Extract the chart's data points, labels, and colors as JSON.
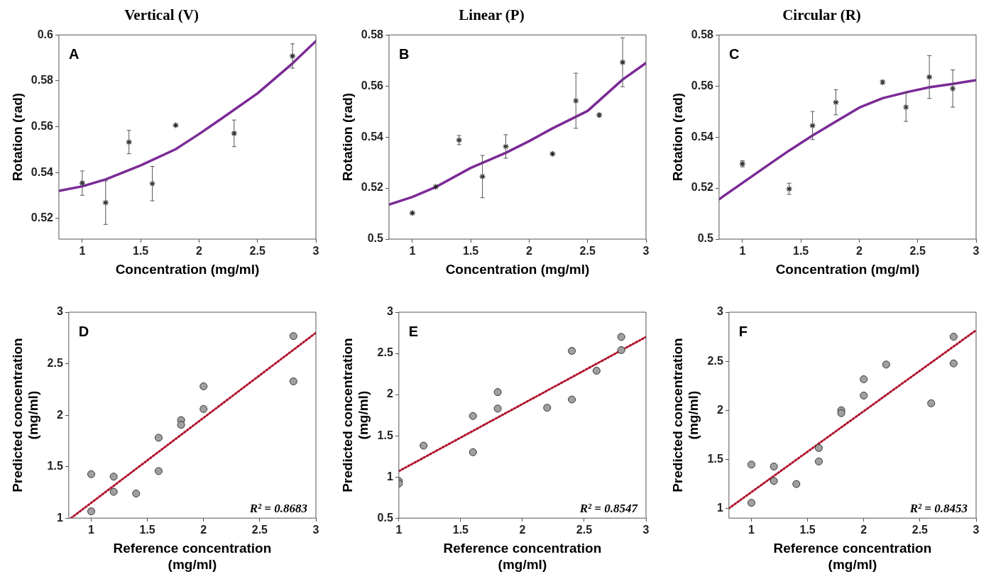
{
  "chart_data": [
    {
      "type": "scatter",
      "title": "Vertical (V)",
      "xlabel": "Concentration (mg/ml)",
      "ylabel": "Rotation (rad)",
      "xlim": [
        0.8,
        3
      ],
      "ylim": [
        0.511,
        0.6
      ],
      "xticks": [
        1,
        1.5,
        2,
        2.5,
        3
      ],
      "yticks": [
        0.52,
        0.54,
        0.56,
        0.58,
        0.6
      ],
      "grid": false,
      "legend": false,
      "annotations": [
        "A"
      ],
      "series": [
        {
          "type": "scatter",
          "color": "#222222",
          "marker": "cross",
          "x": [
            1,
            1.2,
            1.4,
            1.6,
            1.8,
            2.3,
            2.8
          ],
          "values": [
            0.5354,
            0.5269,
            0.5533,
            0.5352,
            0.5606,
            0.5571,
            0.5908
          ],
          "errors": [
            0.0053,
            0.0095,
            0.0051,
            0.0075,
            null,
            0.0058,
            0.0053
          ]
        },
        {
          "type": "line",
          "color": "#7b2a96",
          "line_style": "solid",
          "marker": "none",
          "x": [
            0.8,
            1,
            1.2,
            1.5,
            1.8,
            2,
            2.2,
            2.5,
            2.8,
            3
          ],
          "values": [
            0.532,
            0.534,
            0.537,
            0.5431,
            0.5502,
            0.5568,
            0.5638,
            0.5745,
            0.5876,
            0.5973
          ]
        }
      ]
    },
    {
      "type": "scatter",
      "title": "Linear (P)",
      "xlabel": "Concentration (mg/ml)",
      "ylabel": "Rotation (rad)",
      "xlim": [
        0.8,
        3
      ],
      "ylim": [
        0.5,
        0.58
      ],
      "xticks": [
        1,
        1.5,
        2,
        2.5,
        3
      ],
      "yticks": [
        0.5,
        0.52,
        0.54,
        0.56,
        0.58
      ],
      "grid": false,
      "legend": false,
      "annotations": [
        "B"
      ],
      "series": [
        {
          "type": "scatter",
          "color": "#222222",
          "marker": "cross",
          "x": [
            1,
            1.2,
            1.4,
            1.6,
            1.8,
            2.2,
            2.4,
            2.6,
            2.8
          ],
          "values": [
            0.5102,
            0.5205,
            0.5388,
            0.5245,
            0.5363,
            0.5334,
            0.5542,
            0.5486,
            0.5693
          ],
          "errors": [
            null,
            null,
            0.0018,
            0.0083,
            0.0046,
            null,
            0.0108,
            0.0007,
            0.0096
          ]
        },
        {
          "type": "line",
          "color": "#7b2a96",
          "line_style": "solid",
          "marker": "none",
          "x": [
            0.8,
            1,
            1.2,
            1.5,
            1.8,
            2,
            2.2,
            2.5,
            2.8,
            3
          ],
          "values": [
            0.5135,
            0.5165,
            0.5204,
            0.5279,
            0.5338,
            0.5384,
            0.5434,
            0.5502,
            0.5625,
            0.569
          ]
        }
      ]
    },
    {
      "type": "scatter",
      "title": "Circular (R)",
      "xlabel": "Concentration (mg/ml)",
      "ylabel": "Rotation (rad)",
      "xlim": [
        0.8,
        3
      ],
      "ylim": [
        0.5,
        0.58
      ],
      "xticks": [
        1,
        1.5,
        2,
        2.5,
        3
      ],
      "yticks": [
        0.5,
        0.52,
        0.54,
        0.56,
        0.58
      ],
      "grid": false,
      "legend": false,
      "annotations": [
        "C"
      ],
      "series": [
        {
          "type": "scatter",
          "color": "#222222",
          "marker": "cross",
          "x": [
            1,
            1.4,
            1.6,
            1.8,
            2.2,
            2.4,
            2.6,
            2.8
          ],
          "values": [
            0.5295,
            0.5197,
            0.5445,
            0.5536,
            0.5615,
            0.5517,
            0.5635,
            0.559
          ],
          "errors": [
            0.0012,
            0.0022,
            0.0055,
            0.0049,
            0.0007,
            0.0056,
            0.0084,
            0.0073
          ]
        },
        {
          "type": "line",
          "color": "#7b2a96",
          "line_style": "solid",
          "marker": "none",
          "x": [
            0.8,
            1,
            1.2,
            1.4,
            1.6,
            1.8,
            2,
            2.2,
            2.4,
            2.6,
            2.8,
            3
          ],
          "values": [
            0.5156,
            0.522,
            0.5284,
            0.5347,
            0.5406,
            0.5461,
            0.5515,
            0.5552,
            0.5575,
            0.5595,
            0.5608,
            0.5623
          ]
        }
      ]
    },
    {
      "type": "scatter",
      "xlabel": "Reference concentration (mg/ml)",
      "ylabel": "Predicted concentration (mg/ml)",
      "xlim": [
        0.8,
        3
      ],
      "ylim": [
        1,
        3
      ],
      "xticks": [
        1,
        1.5,
        2,
        2.5,
        3
      ],
      "yticks": [
        1,
        1.5,
        2,
        2.5,
        3
      ],
      "grid": false,
      "legend": false,
      "annotations": [
        "D",
        "R² = 0.8683"
      ],
      "series": [
        {
          "type": "scatter",
          "color": "#a0a0a0",
          "marker": "circle",
          "x": [
            1,
            1,
            1.2,
            1.2,
            1.4,
            1.6,
            1.6,
            1.8,
            1.8,
            2,
            2,
            2.8,
            2.8
          ],
          "values": [
            1.427,
            1.066,
            1.403,
            1.256,
            1.239,
            1.781,
            1.457,
            1.952,
            1.906,
            2.28,
            2.06,
            2.768,
            2.328
          ]
        },
        {
          "type": "line",
          "color": "#b0122c",
          "line_style": "dotted",
          "marker": "none",
          "x": [
            0.82,
            3
          ],
          "values": [
            1,
            2.8
          ]
        }
      ]
    },
    {
      "type": "scatter",
      "xlabel": "Reference concentration (mg/ml)",
      "ylabel": "Predicted concentration (mg/ml)",
      "xlim": [
        1,
        3
      ],
      "ylim": [
        0.5,
        3
      ],
      "xticks": [
        1,
        1.5,
        2,
        2.5,
        3
      ],
      "yticks": [
        0.5,
        1,
        1.5,
        2,
        2.5,
        3
      ],
      "grid": false,
      "legend": false,
      "annotations": [
        "E",
        "R² = 0.8547"
      ],
      "series": [
        {
          "type": "scatter",
          "color": "#a0a0a0",
          "marker": "circle",
          "x": [
            1,
            1,
            1.2,
            1.6,
            1.6,
            1.8,
            1.8,
            2.2,
            2.4,
            2.4,
            2.6,
            2.8,
            2.8
          ],
          "values": [
            0.95,
            0.92,
            1.38,
            1.74,
            1.3,
            2.03,
            1.83,
            1.84,
            2.53,
            1.94,
            2.29,
            2.7,
            2.54
          ]
        },
        {
          "type": "line",
          "color": "#b0122c",
          "line_style": "dotted",
          "marker": "none",
          "x": [
            1,
            3
          ],
          "values": [
            1.07,
            2.7
          ]
        }
      ]
    },
    {
      "type": "scatter",
      "xlabel": "Reference concentration (mg/ml)",
      "ylabel": "Predicted concentration (mg/ml)",
      "xlim": [
        0.8,
        3
      ],
      "ylim": [
        0.9,
        3
      ],
      "xticks": [
        1,
        1.5,
        2,
        2.5,
        3
      ],
      "yticks": [
        1,
        1.5,
        2,
        2.5,
        3
      ],
      "grid": false,
      "legend": false,
      "annotations": [
        "F",
        "R² = 0.8453"
      ],
      "series": [
        {
          "type": "scatter",
          "color": "#a0a0a0",
          "marker": "circle",
          "x": [
            1,
            1,
            1.2,
            1.2,
            1.4,
            1.6,
            1.6,
            1.8,
            1.8,
            2,
            2,
            2.2,
            2.6,
            2.8,
            2.8
          ],
          "values": [
            1.446,
            1.056,
            1.426,
            1.279,
            1.248,
            1.615,
            1.478,
            2,
            1.971,
            2.316,
            2.15,
            2.466,
            2.071,
            2.75,
            2.478
          ]
        },
        {
          "type": "line",
          "color": "#b0122c",
          "line_style": "dotted",
          "marker": "none",
          "x": [
            0.8,
            3
          ],
          "values": [
            1,
            2.816
          ]
        }
      ]
    }
  ]
}
